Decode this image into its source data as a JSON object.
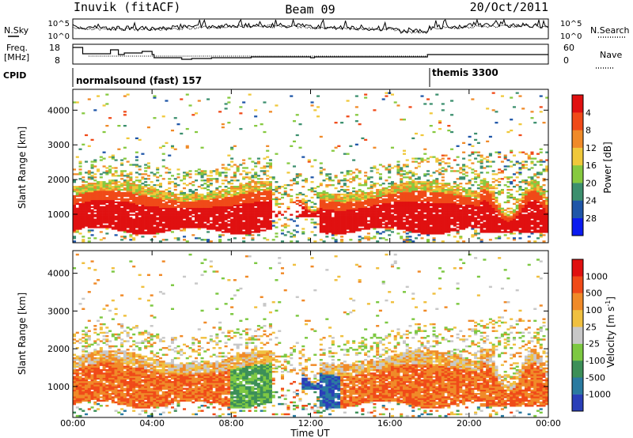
{
  "header": {
    "station": "Inuvik (fitACF)",
    "beam": "Beam 09",
    "date": "20/Oct/2011"
  },
  "top_panels": {
    "nsky_label": "N.Sky",
    "nsky_ticks": [
      "10^5",
      "10^0"
    ],
    "nsearch_label": "N.Search",
    "nsearch_ticks": [
      "10^5",
      "10^0"
    ],
    "freq_label_1": "Freq.",
    "freq_label_2": "[MHz]",
    "freq_ticks": [
      "18",
      "8"
    ],
    "nave_label": "Nave",
    "nave_ticks": [
      "60",
      "0"
    ],
    "cpid_label": "CPID",
    "cpid_segments": [
      {
        "label": "normalsound (fast) 157",
        "start_hour": 0
      },
      {
        "label": "themis 3300",
        "start_hour": 18
      }
    ]
  },
  "chart_data": [
    {
      "type": "heatmap",
      "name": "power-panel",
      "xlabel": "",
      "ylabel": "Slant Range [km]",
      "xlim": [
        0,
        24
      ],
      "ylim": [
        180,
        4600
      ],
      "y_ticks": [
        1000,
        2000,
        3000,
        4000
      ],
      "colorbar": {
        "label": "Power [dB]",
        "ticks": [
          "4",
          "8",
          "12",
          "16",
          "20",
          "24",
          "28"
        ],
        "colors": [
          "#0b1bf0",
          "#1f56a8",
          "#3c8f6e",
          "#86c93f",
          "#f0c83a",
          "#f08a28",
          "#f04a18",
          "#e01010"
        ]
      }
    },
    {
      "type": "heatmap",
      "name": "velocity-panel",
      "xlabel": "Time UT",
      "ylabel": "Slant Range [km]",
      "xlim": [
        0,
        24
      ],
      "ylim": [
        180,
        4600
      ],
      "x_ticks": [
        "00:00",
        "04:00",
        "08:00",
        "12:00",
        "16:00",
        "20:00",
        "00:00"
      ],
      "y_ticks": [
        1000,
        2000,
        3000,
        4000
      ],
      "colorbar": {
        "label_main": "Velocity",
        "label_unit": "[m s",
        "label_exp": "-1",
        "label_close": "]",
        "ticks": [
          "1000",
          "500",
          "100",
          "25",
          "-25",
          "-100",
          "-500",
          "-1000"
        ],
        "colors": [
          "#2a3fb8",
          "#2a7aa0",
          "#3c8f58",
          "#7dc842",
          "#c8c8c8",
          "#f0c040",
          "#f08a28",
          "#f04a18",
          "#e01010"
        ]
      }
    }
  ]
}
